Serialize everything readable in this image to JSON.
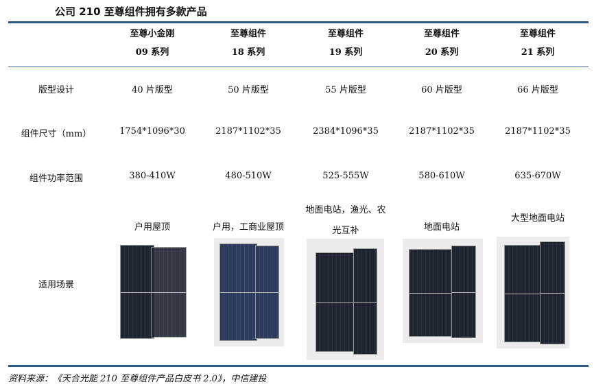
{
  "title": "公司 210 至尊组件拥有多款产品",
  "columns": [
    {
      "name": "至尊小金刚",
      "series": "09 系列",
      "layout": "40 片版型",
      "size": "1754*1096*30",
      "power": "380-410W",
      "scene": "户用屋顶"
    },
    {
      "name": "至尊组件",
      "series": "18 系列",
      "layout": "50 片版型",
      "size": "2187*1102*35",
      "power": "480-510W",
      "scene": "户用，工商业屋顶"
    },
    {
      "name": "至尊组件",
      "series": "19 系列",
      "layout": "55 片版型",
      "size": "2384*1096*35",
      "power": "525-555W",
      "scene": "地面电站，渔光、农光互补"
    },
    {
      "name": "至尊组件",
      "series": "20 系列",
      "layout": "60 片版型",
      "size": "2187*1102*35",
      "power": "580-610W",
      "scene": "地面电站"
    },
    {
      "name": "至尊组件",
      "series": "21 系列",
      "layout": "66 片版型",
      "size": "2187*1102*35",
      "power": "635-670W",
      "scene": "大型地面电站"
    }
  ],
  "row_labels": {
    "layout": "版型设计",
    "size": "组件尺寸（mm）",
    "power": "组件功率范围",
    "scene": "适用场景"
  },
  "source": "资料来源：《天合光能 210 至尊组件产品白皮书 2.0》，中信建投",
  "colors": {
    "rule": "#2a5a8c"
  }
}
